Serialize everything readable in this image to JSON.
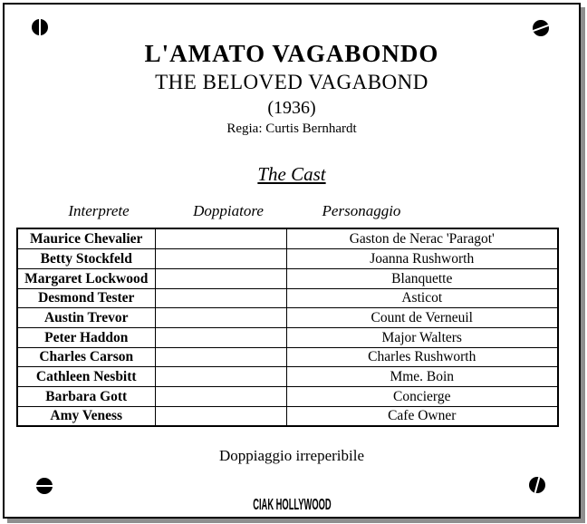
{
  "header": {
    "title": "L'AMATO VAGABONDO",
    "subtitle": "THE BELOVED VAGABOND",
    "year": "(1936)",
    "director": "Regia: Curtis Bernhardt"
  },
  "cast": {
    "heading": "The Cast",
    "columns": [
      "Interprete",
      "Doppiatore",
      "Personaggio"
    ],
    "rows": [
      [
        "Maurice Chevalier",
        "",
        "Gaston de Nerac 'Paragot'"
      ],
      [
        "Betty Stockfeld",
        "",
        "Joanna Rushworth"
      ],
      [
        "Margaret Lockwood",
        "",
        "Blanquette"
      ],
      [
        "Desmond Tester",
        "",
        "Asticot"
      ],
      [
        "Austin Trevor",
        "",
        "Count de Verneuil"
      ],
      [
        "Peter Haddon",
        "",
        "Major Walters"
      ],
      [
        "Charles Carson",
        "",
        "Charles Rushworth"
      ],
      [
        "Cathleen Nesbitt",
        "",
        "Mme. Boin"
      ],
      [
        "Barbara Gott",
        "",
        "Concierge"
      ],
      [
        "Amy Veness",
        "",
        "Cafe Owner"
      ]
    ]
  },
  "footer": {
    "note": "Doppiaggio irreperibile",
    "logo": "CIAK HOLLYWOOD"
  },
  "icons": {
    "corner_screws": [
      "screw-vertical-slot",
      "screw-diagonal-slot",
      "screw-horizontal-slot",
      "screw-tilted-slot"
    ]
  },
  "colors": {
    "ink": "#000000",
    "paper": "#ffffff",
    "shadow": "#8f8f8f"
  }
}
